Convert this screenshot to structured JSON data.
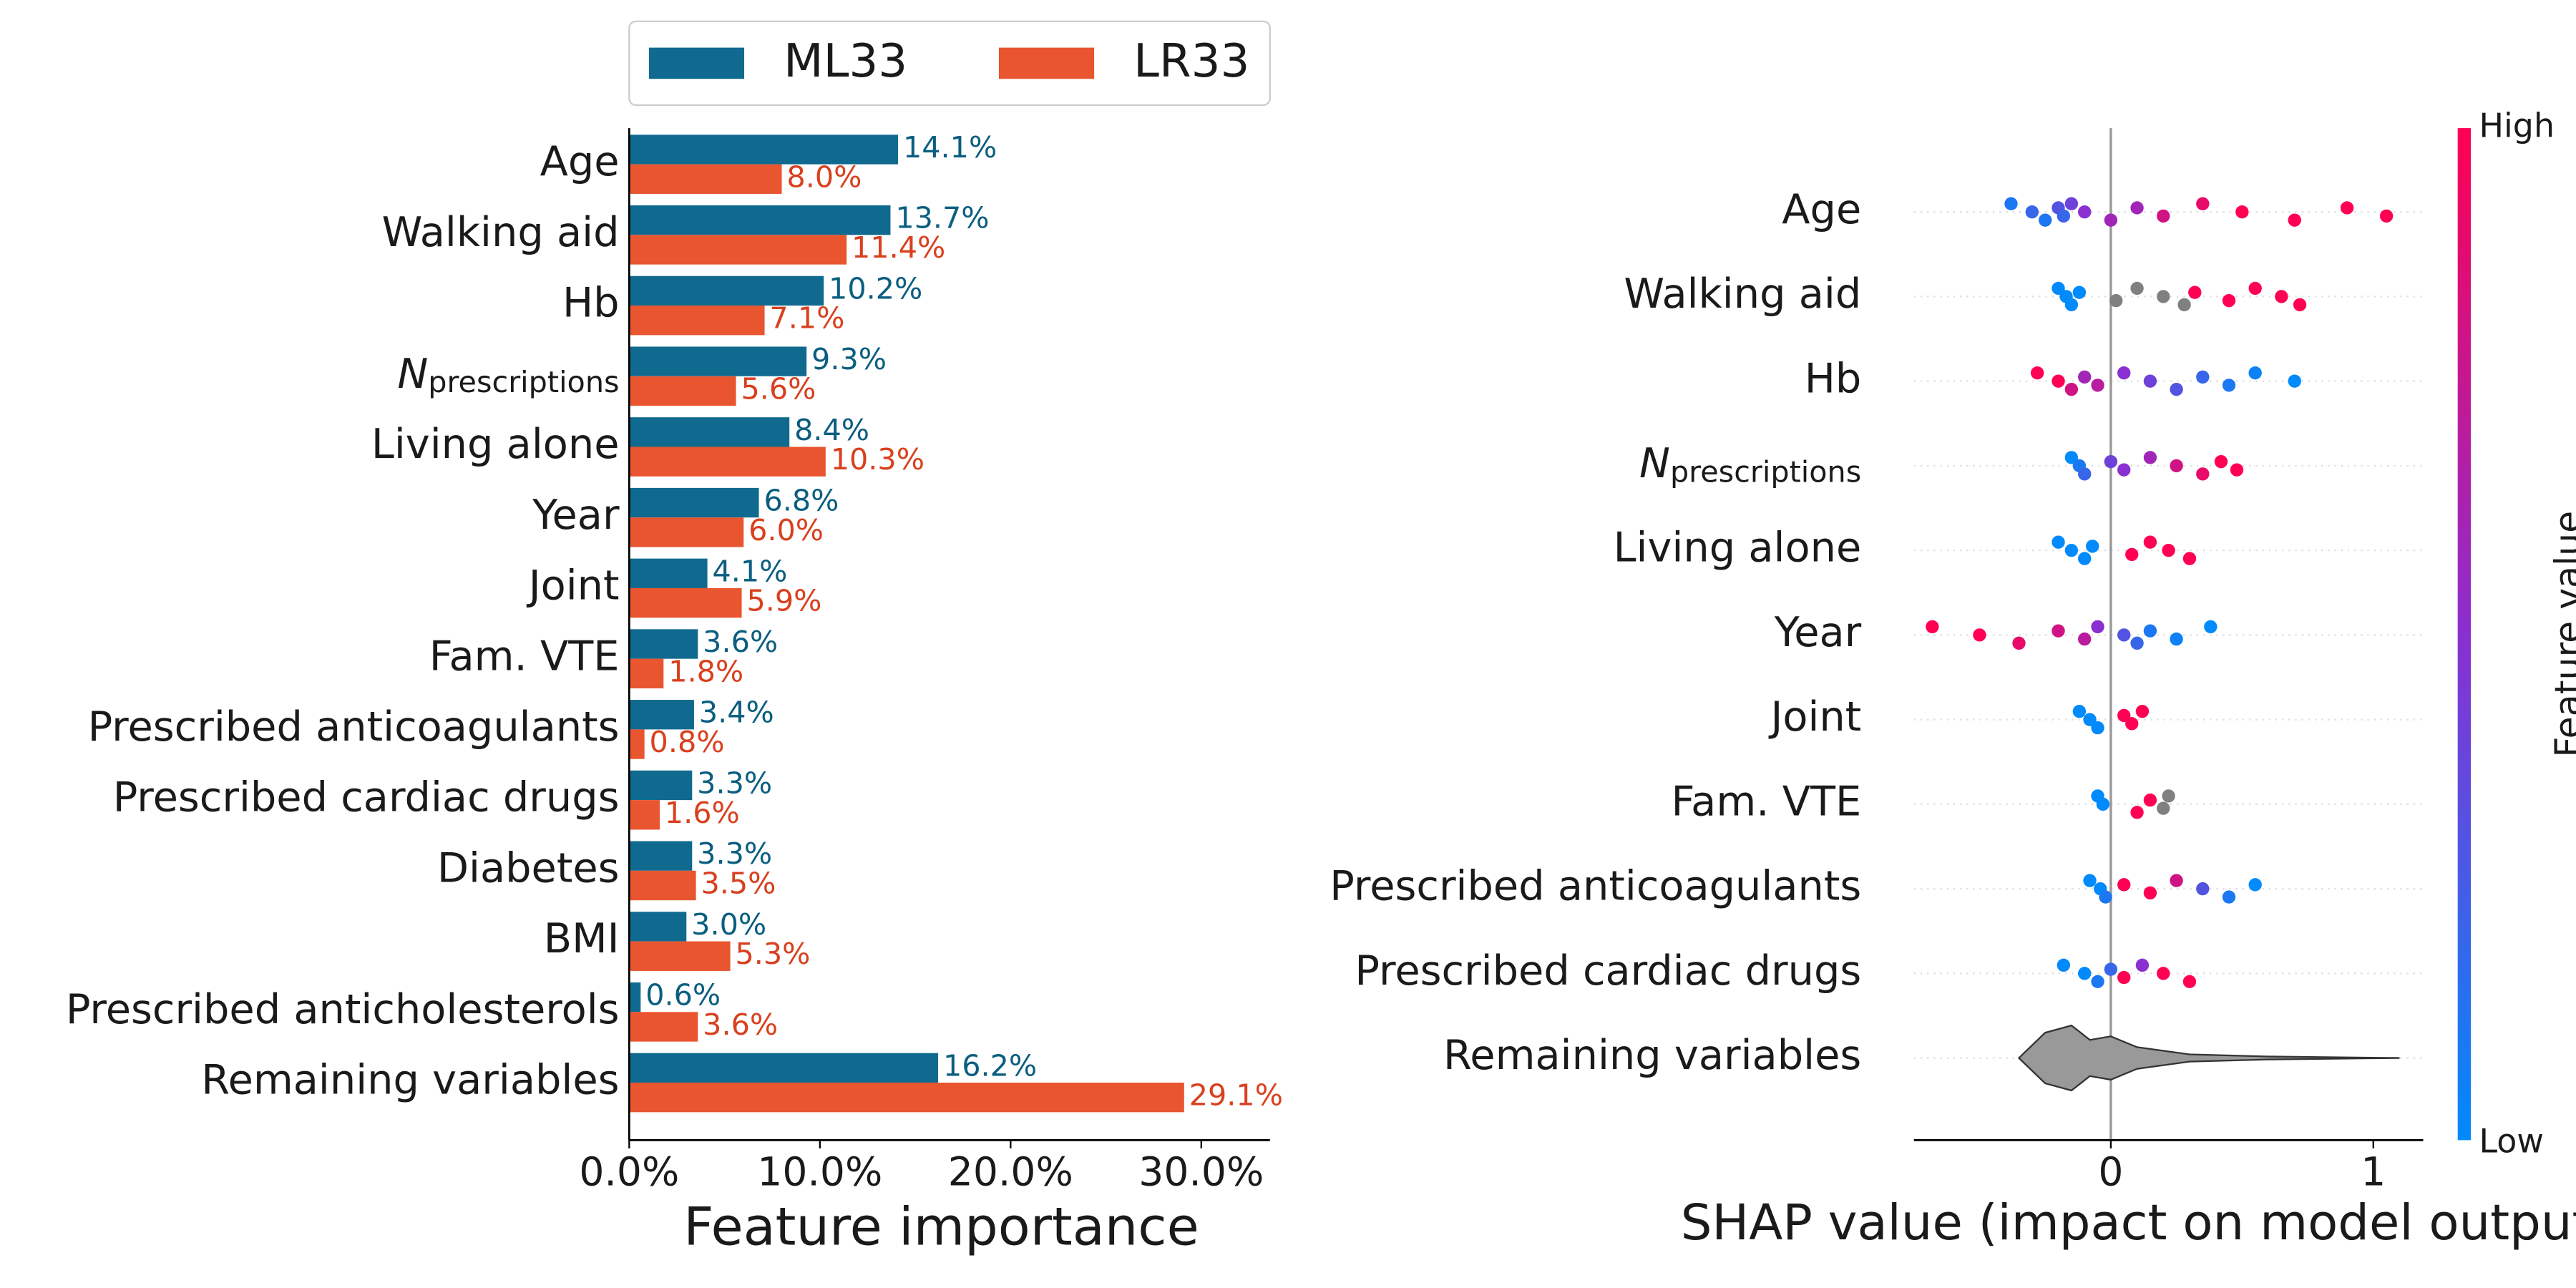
{
  "chart_data": [
    {
      "type": "hbar",
      "categories": [
        "Age",
        "Walking aid",
        "Hb",
        [
          "N",
          "prescriptions"
        ],
        "Living alone",
        "Year",
        "Joint",
        "Fam. VTE",
        "Prescribed anticoagulants",
        "Prescribed cardiac drugs",
        "Diabetes",
        "BMI",
        "Prescribed anticholesterols",
        "Remaining variables"
      ],
      "series": [
        {
          "name": "ML33",
          "color": "#106a8f",
          "label_color": "#0b5e80",
          "values": [
            14.1,
            13.7,
            10.2,
            9.3,
            8.4,
            6.8,
            4.1,
            3.6,
            3.4,
            3.3,
            3.3,
            3.0,
            0.6,
            16.2
          ],
          "value_labels": [
            "14.1%",
            "13.7%",
            "10.2%",
            "9.3%",
            "8.4%",
            "6.8%",
            "4.1%",
            "3.6%",
            "3.4%",
            "3.3%",
            "3.3%",
            "3.0%",
            "0.6%",
            "16.2%"
          ]
        },
        {
          "name": "LR33",
          "color": "#e8552f",
          "label_color": "#d9401e",
          "values": [
            8.0,
            11.4,
            7.1,
            5.6,
            10.3,
            6.0,
            5.9,
            1.8,
            0.8,
            1.6,
            3.5,
            5.3,
            3.6,
            29.1
          ],
          "value_labels": [
            "8.0%",
            "11.4%",
            "7.1%",
            "5.6%",
            "10.3%",
            "6.0%",
            "5.9%",
            "1.8%",
            "0.8%",
            "1.6%",
            "3.5%",
            "5.3%",
            "3.6%",
            "29.1%"
          ]
        }
      ],
      "xlim": [
        0,
        33.6
      ],
      "xticks": [
        {
          "value": 0,
          "label": "0.0%"
        },
        {
          "value": 10,
          "label": "10.0%"
        },
        {
          "value": 20,
          "label": "20.0%"
        },
        {
          "value": 30,
          "label": "30.0%"
        }
      ],
      "xlabel": "Feature importance",
      "legend": "top"
    },
    {
      "type": "beeswarm",
      "categories": [
        "Age",
        "Walking aid",
        "Hb",
        [
          "N",
          "prescriptions"
        ],
        "Living alone",
        "Year",
        "Joint",
        "Fam. VTE",
        "Prescribed anticoagulants",
        "Prescribed cardiac drugs"
      ],
      "points": [
        [
          [
            -0.38,
            0.1
          ],
          [
            -0.3,
            0.2
          ],
          [
            -0.25,
            0.1
          ],
          [
            -0.2,
            0.3
          ],
          [
            -0.18,
            0.2
          ],
          [
            -0.15,
            0.4
          ],
          [
            -0.1,
            0.5
          ],
          [
            0,
            0.6
          ],
          [
            0.1,
            0.6
          ],
          [
            0.2,
            0.8
          ],
          [
            0.35,
            0.9
          ],
          [
            0.5,
            1
          ],
          [
            0.7,
            1
          ],
          [
            0.9,
            1
          ],
          [
            1.05,
            1
          ]
        ],
        [
          [
            -0.2,
            0
          ],
          [
            -0.17,
            0
          ],
          [
            -0.15,
            0
          ],
          [
            -0.12,
            0
          ],
          [
            0.02,
            null
          ],
          [
            0.1,
            null
          ],
          [
            0.2,
            null
          ],
          [
            0.28,
            null
          ],
          [
            0.32,
            1
          ],
          [
            0.45,
            1
          ],
          [
            0.55,
            1
          ],
          [
            0.65,
            1
          ],
          [
            0.72,
            1
          ]
        ],
        [
          [
            -0.28,
            1
          ],
          [
            -0.2,
            1
          ],
          [
            -0.15,
            0.8
          ],
          [
            -0.1,
            0.6
          ],
          [
            -0.05,
            0.7
          ],
          [
            0.05,
            0.5
          ],
          [
            0.15,
            0.4
          ],
          [
            0.25,
            0.3
          ],
          [
            0.35,
            0.2
          ],
          [
            0.45,
            0.1
          ],
          [
            0.55,
            0.05
          ],
          [
            0.7,
            0
          ]
        ],
        [
          [
            -0.15,
            0
          ],
          [
            -0.12,
            0.1
          ],
          [
            -0.1,
            0.2
          ],
          [
            0,
            0.4
          ],
          [
            0.05,
            0.5
          ],
          [
            0.15,
            0.6
          ],
          [
            0.25,
            0.8
          ],
          [
            0.35,
            0.9
          ],
          [
            0.42,
            1
          ],
          [
            0.48,
            1
          ]
        ],
        [
          [
            -0.2,
            0
          ],
          [
            -0.15,
            0
          ],
          [
            -0.1,
            0
          ],
          [
            -0.07,
            0
          ],
          [
            0.08,
            1
          ],
          [
            0.15,
            1
          ],
          [
            0.22,
            1
          ],
          [
            0.3,
            1
          ]
        ],
        [
          [
            -0.68,
            1
          ],
          [
            -0.5,
            1
          ],
          [
            -0.35,
            0.9
          ],
          [
            -0.2,
            0.8
          ],
          [
            -0.1,
            0.7
          ],
          [
            -0.05,
            0.5
          ],
          [
            0.05,
            0.3
          ],
          [
            0.1,
            0.2
          ],
          [
            0.15,
            0.1
          ],
          [
            0.25,
            0.05
          ],
          [
            0.38,
            0
          ]
        ],
        [
          [
            -0.12,
            0
          ],
          [
            -0.08,
            0
          ],
          [
            -0.05,
            0
          ],
          [
            0.05,
            1
          ],
          [
            0.08,
            1
          ],
          [
            0.12,
            1
          ]
        ],
        [
          [
            -0.05,
            0
          ],
          [
            -0.03,
            0
          ],
          [
            0.1,
            1
          ],
          [
            0.15,
            1
          ],
          [
            0.2,
            null
          ],
          [
            0.22,
            null
          ]
        ],
        [
          [
            -0.08,
            0
          ],
          [
            -0.04,
            0
          ],
          [
            -0.02,
            0.1
          ],
          [
            0.05,
            1
          ],
          [
            0.15,
            1
          ],
          [
            0.25,
            0.8
          ],
          [
            0.35,
            0.3
          ],
          [
            0.45,
            0.1
          ],
          [
            0.55,
            0
          ]
        ],
        [
          [
            -0.18,
            0
          ],
          [
            -0.1,
            0
          ],
          [
            -0.05,
            0.1
          ],
          [
            0,
            0.2
          ],
          [
            0.05,
            1
          ],
          [
            0.12,
            0.5
          ],
          [
            0.2,
            1
          ],
          [
            0.3,
            1
          ]
        ]
      ],
      "remaining": {
        "name": "Remaining variables",
        "color": "#999999",
        "x": [
          -0.35,
          -0.25,
          -0.15,
          -0.08,
          0,
          0.1,
          0.3,
          0.6,
          1.1
        ],
        "density": [
          0,
          0.7,
          0.9,
          0.5,
          0.6,
          0.3,
          0.1,
          0.04,
          0
        ]
      },
      "xlim": [
        -0.75,
        1.19
      ],
      "xticks": [
        0,
        1
      ],
      "xlabel": "SHAP value (impact on model output)",
      "colorbar": {
        "title": "Feature value",
        "high": "High",
        "low": "Low",
        "low_color": "#008afb",
        "high_color": "#ff0052",
        "missing_color": "#808080"
      }
    }
  ]
}
